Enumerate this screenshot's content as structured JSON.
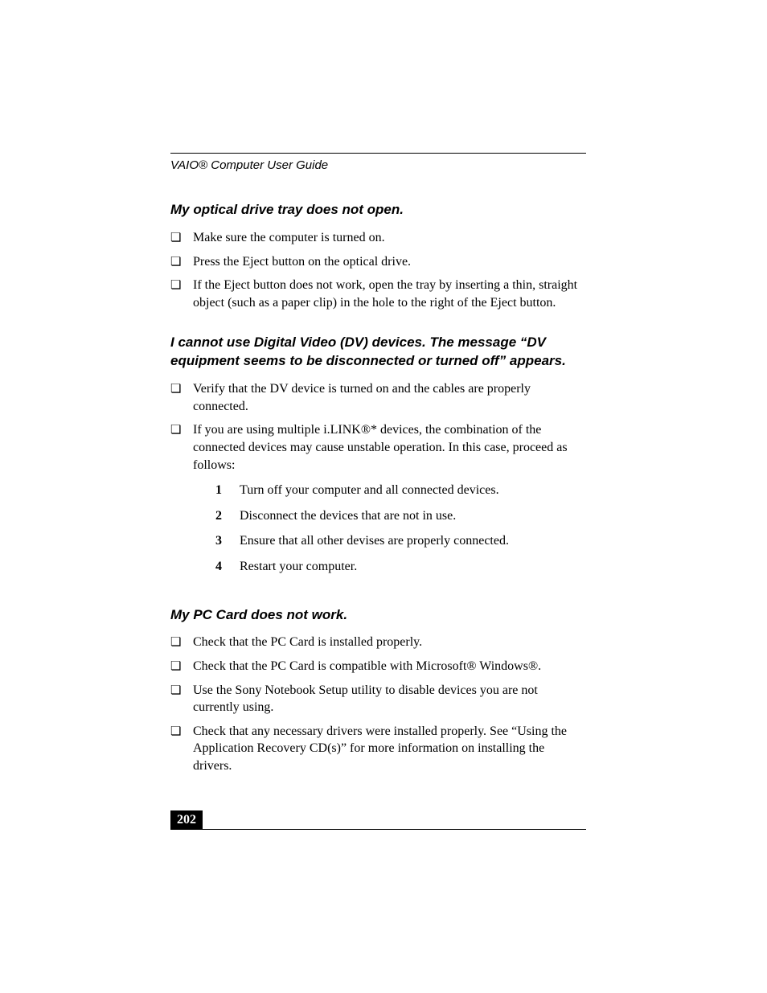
{
  "header": {
    "title": "VAIO® Computer User Guide"
  },
  "sections": [
    {
      "heading": "My optical drive tray does not open.",
      "items": [
        {
          "text": "Make sure the computer is turned on."
        },
        {
          "text": "Press the Eject button on the optical drive."
        },
        {
          "text": "If the Eject button does not work, open the tray by inserting a thin, straight object (such as a paper clip) in the hole to the right of the Eject button."
        }
      ]
    },
    {
      "heading": "I cannot use Digital Video (DV) devices. The message “DV equipment seems to be disconnected or turned off” appears.",
      "items": [
        {
          "text": "Verify that the DV device is turned on and the cables are properly connected."
        },
        {
          "text": "If you are using multiple i.LINK®* devices, the combination of the connected devices may cause unstable operation. In this case, proceed as follows:",
          "steps": [
            "Turn off your computer and all connected devices.",
            "Disconnect the devices that are not in use.",
            "Ensure that all other devises are properly connected.",
            "Restart your computer."
          ]
        }
      ]
    },
    {
      "heading": "My PC Card does not work.",
      "items": [
        {
          "text": "Check that the PC Card is installed properly."
        },
        {
          "text": "Check that the PC Card is compatible with Microsoft® Windows®."
        },
        {
          "text": "Use the Sony Notebook Setup utility to disable devices you are not currently using."
        },
        {
          "text": "Check that any necessary drivers were installed properly. See “Using the Application Recovery CD(s)” for more information on installing the drivers."
        }
      ]
    }
  ],
  "footer": {
    "page_number": "202"
  },
  "styling": {
    "bullet_glyph": "❏",
    "colors": {
      "text": "#000000",
      "background": "#ffffff",
      "page_num_bg": "#000000",
      "page_num_fg": "#ffffff",
      "rule": "#000000"
    },
    "fonts": {
      "body_family": "Times New Roman",
      "heading_family": "Arial",
      "body_size_pt": 12,
      "heading_size_pt": 12.5,
      "header_size_pt": 11
    }
  }
}
